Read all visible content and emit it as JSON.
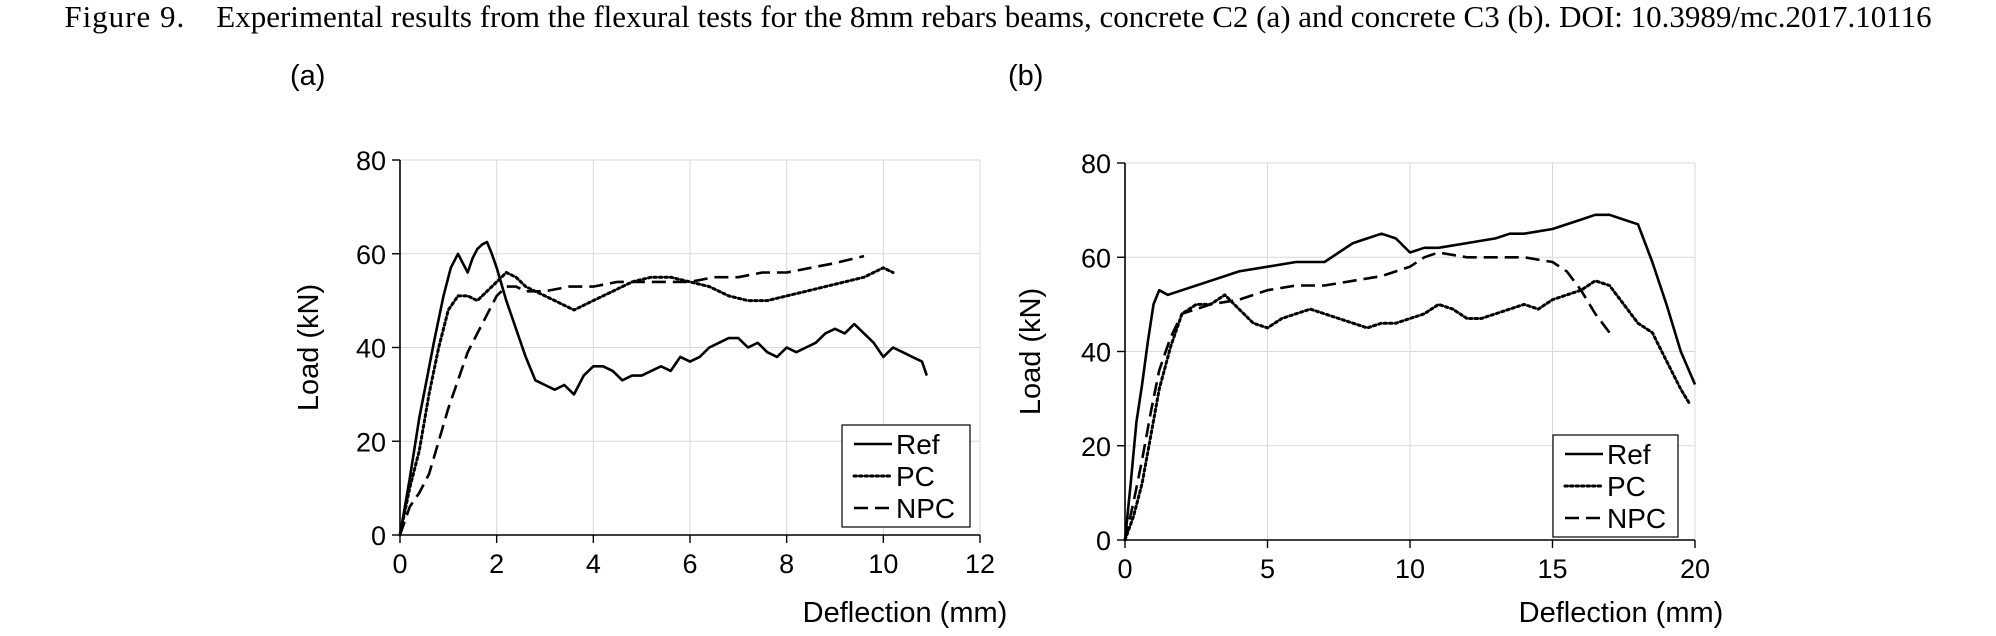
{
  "caption": {
    "figure_label": "Figure 9.",
    "text": "Experimental results from the flexural tests for the 8mm rebars beams, concrete C2 (a) and concrete C3 (b). DOI: 10.3989/mc.2017.10116"
  },
  "chart_data": [
    {
      "type": "line",
      "panel_label": "(a)",
      "xlabel": "Deflection (mm)",
      "ylabel": "Load (kN)",
      "xlim": [
        0,
        12
      ],
      "ylim": [
        0,
        80
      ],
      "xticks": [
        0,
        2,
        4,
        6,
        8,
        10,
        12
      ],
      "yticks": [
        0,
        20,
        40,
        60,
        80
      ],
      "grid": true,
      "legend_position": "bottom-right",
      "series": [
        {
          "name": "Ref",
          "style": "solid",
          "x": [
            0,
            0.2,
            0.4,
            0.55,
            0.7,
            0.9,
            1.05,
            1.2,
            1.3,
            1.4,
            1.5,
            1.6,
            1.7,
            1.8,
            1.9,
            2.0,
            2.2,
            2.4,
            2.6,
            2.8,
            3.0,
            3.2,
            3.4,
            3.6,
            3.8,
            4.0,
            4.2,
            4.4,
            4.6,
            4.8,
            5.0,
            5.2,
            5.4,
            5.6,
            5.8,
            6.0,
            6.2,
            6.4,
            6.6,
            6.8,
            7.0,
            7.2,
            7.4,
            7.6,
            7.8,
            8.0,
            8.2,
            8.4,
            8.6,
            8.8,
            9.0,
            9.2,
            9.4,
            9.6,
            9.8,
            10.0,
            10.2,
            10.4,
            10.6,
            10.8,
            10.9
          ],
          "y": [
            0,
            12,
            25,
            33,
            41,
            51,
            57,
            60,
            58,
            56,
            59,
            61,
            62,
            62.5,
            60,
            57,
            50,
            44,
            38,
            33,
            32,
            31,
            32,
            30,
            34,
            36,
            36,
            35,
            33,
            34,
            34,
            35,
            36,
            35,
            38,
            37,
            38,
            40,
            41,
            42,
            42,
            40,
            41,
            39,
            38,
            40,
            39,
            40,
            41,
            43,
            44,
            43,
            45,
            43,
            41,
            38,
            40,
            39,
            38,
            37,
            34
          ]
        },
        {
          "name": "PC",
          "style": "dotted",
          "x": [
            0,
            0.2,
            0.4,
            0.6,
            0.8,
            1.0,
            1.2,
            1.4,
            1.6,
            1.8,
            2.0,
            2.2,
            2.4,
            2.6,
            2.8,
            3.0,
            3.2,
            3.4,
            3.6,
            3.8,
            4.0,
            4.4,
            4.8,
            5.2,
            5.6,
            6.0,
            6.4,
            6.8,
            7.2,
            7.6,
            8.0,
            8.4,
            8.8,
            9.2,
            9.6,
            10.0,
            10.2
          ],
          "y": [
            0,
            10,
            18,
            30,
            40,
            48,
            51,
            51,
            50,
            52,
            54,
            56,
            55,
            53,
            52,
            51,
            50,
            49,
            48,
            49,
            50,
            52,
            54,
            55,
            55,
            54,
            53,
            51,
            50,
            50,
            51,
            52,
            53,
            54,
            55,
            57,
            56
          ]
        },
        {
          "name": "NPC",
          "style": "dashed",
          "x": [
            0,
            0.2,
            0.4,
            0.6,
            0.8,
            1.0,
            1.2,
            1.4,
            1.6,
            1.8,
            2.0,
            2.2,
            2.4,
            2.6,
            2.8,
            3.0,
            3.5,
            4.0,
            4.5,
            5.0,
            5.5,
            6.0,
            6.5,
            7.0,
            7.5,
            8.0,
            8.5,
            9.0,
            9.4,
            9.6
          ],
          "y": [
            0,
            6,
            9,
            13,
            20,
            27,
            33,
            39,
            43,
            47,
            51,
            53,
            53,
            52,
            52,
            52,
            53,
            53,
            54,
            54,
            54,
            54,
            55,
            55,
            56,
            56,
            57,
            58,
            59,
            59.5
          ]
        }
      ]
    },
    {
      "type": "line",
      "panel_label": "(b)",
      "xlabel": "Deflection (mm)",
      "ylabel": "Load (kN)",
      "xlim": [
        0,
        20
      ],
      "ylim": [
        0,
        80
      ],
      "xticks": [
        0,
        5,
        10,
        15,
        20
      ],
      "yticks": [
        0,
        20,
        40,
        60,
        80
      ],
      "grid": true,
      "legend_position": "bottom-right",
      "series": [
        {
          "name": "Ref",
          "style": "solid",
          "x": [
            0,
            0.2,
            0.4,
            0.6,
            0.8,
            1.0,
            1.2,
            1.5,
            2.0,
            2.5,
            3.0,
            3.5,
            4.0,
            5.0,
            6.0,
            7.0,
            7.5,
            8.0,
            8.5,
            9.0,
            9.5,
            10.0,
            10.5,
            11.0,
            12.0,
            13.0,
            13.5,
            14.0,
            15.0,
            16.0,
            16.5,
            17.0,
            17.5,
            18.0,
            18.5,
            19.0,
            19.5,
            20.0
          ],
          "y": [
            0,
            12,
            25,
            33,
            42,
            50,
            53,
            52,
            53,
            54,
            55,
            56,
            57,
            58,
            59,
            59,
            61,
            63,
            64,
            65,
            64,
            61,
            62,
            62,
            63,
            64,
            65,
            65,
            66,
            68,
            69,
            69,
            68,
            67,
            59,
            50,
            40,
            33
          ]
        },
        {
          "name": "PC",
          "style": "dotted",
          "x": [
            0,
            0.3,
            0.6,
            0.9,
            1.2,
            1.6,
            2.0,
            2.5,
            3.0,
            3.5,
            4.0,
            4.5,
            5.0,
            5.5,
            6.0,
            6.5,
            7.0,
            7.5,
            8.0,
            8.5,
            9.0,
            9.5,
            10.0,
            10.5,
            11.0,
            11.5,
            12.0,
            12.5,
            13.0,
            13.5,
            14.0,
            14.5,
            15.0,
            15.5,
            16.0,
            16.5,
            17.0,
            17.5,
            18.0,
            18.5,
            19.0,
            19.5,
            19.8
          ],
          "y": [
            0,
            5,
            12,
            22,
            32,
            41,
            48,
            50,
            50,
            52,
            49,
            46,
            45,
            47,
            48,
            49,
            48,
            47,
            46,
            45,
            46,
            46,
            47,
            48,
            50,
            49,
            47,
            47,
            48,
            49,
            50,
            49,
            51,
            52,
            53,
            55,
            54,
            50,
            46,
            44,
            38,
            32,
            29
          ]
        },
        {
          "name": "NPC",
          "style": "dashed",
          "x": [
            0,
            0.3,
            0.6,
            0.9,
            1.2,
            1.6,
            2.0,
            2.5,
            3.0,
            4.0,
            5.0,
            6.0,
            7.0,
            8.0,
            9.0,
            10.0,
            10.5,
            11.0,
            12.0,
            13.0,
            14.0,
            15.0,
            15.5,
            16.0,
            16.5,
            17.0
          ],
          "y": [
            0,
            8,
            17,
            27,
            36,
            43,
            48,
            49,
            50,
            51,
            53,
            54,
            54,
            55,
            56,
            58,
            60,
            61,
            60,
            60,
            60,
            59,
            57,
            53,
            48,
            44
          ]
        }
      ]
    }
  ]
}
